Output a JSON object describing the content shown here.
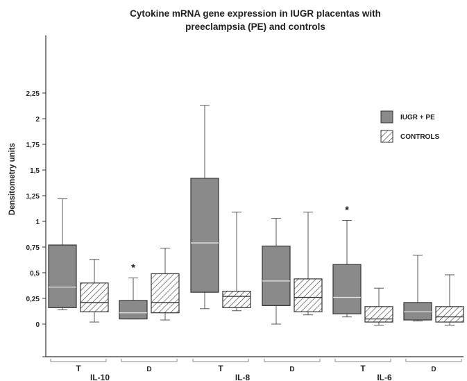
{
  "chart_data": {
    "type": "box",
    "title_line1": "Cytokine mRNA gene expression in IUGR placentas with",
    "title_line2": "preeclampsia (PE) and controls",
    "ylabel": "Densitometry units",
    "ylim": [
      -0.2,
      2.25
    ],
    "yticks": [
      "0",
      "0,25",
      "0,5",
      "0,75",
      "1",
      "1,25",
      "1,5",
      "1,75",
      "2",
      "2,25"
    ],
    "ytick_values": [
      0,
      0.25,
      0.5,
      0.75,
      1,
      1.25,
      1.5,
      1.75,
      2,
      2.25
    ],
    "legend_position": "right",
    "series": [
      {
        "name": "IUGR + PE",
        "style": "solid-gray",
        "color": "#8a8a8a"
      },
      {
        "name": "CONTROLS",
        "style": "hatched",
        "color": "#ffffff"
      }
    ],
    "groups": [
      {
        "name": "IL-10",
        "subgroups": [
          {
            "label": "T",
            "boxes": [
              {
                "series": 0,
                "min": 0.14,
                "q1": 0.16,
                "median": 0.36,
                "q3": 0.77,
                "max": 1.22,
                "star": false
              },
              {
                "series": 1,
                "min": 0.02,
                "q1": 0.12,
                "median": 0.21,
                "q3": 0.4,
                "max": 0.63,
                "star": false
              }
            ]
          },
          {
            "label": "D",
            "boxes": [
              {
                "series": 0,
                "min": 0.05,
                "q1": 0.05,
                "median": 0.11,
                "q3": 0.23,
                "max": 0.45,
                "star": true
              },
              {
                "series": 1,
                "min": 0.04,
                "q1": 0.11,
                "median": 0.21,
                "q3": 0.49,
                "max": 0.74,
                "star": false
              }
            ]
          }
        ]
      },
      {
        "name": "IL-8",
        "subgroups": [
          {
            "label": "T",
            "boxes": [
              {
                "series": 0,
                "min": 0.15,
                "q1": 0.31,
                "median": 0.79,
                "q3": 1.42,
                "max": 2.13,
                "star": false
              },
              {
                "series": 1,
                "min": 0.13,
                "q1": 0.16,
                "median": 0.27,
                "q3": 0.32,
                "max": 1.09,
                "star": false
              }
            ]
          },
          {
            "label": "D",
            "boxes": [
              {
                "series": 0,
                "min": 0.0,
                "q1": 0.18,
                "median": 0.42,
                "q3": 0.76,
                "max": 1.03,
                "star": false
              },
              {
                "series": 1,
                "min": 0.09,
                "q1": 0.12,
                "median": 0.26,
                "q3": 0.44,
                "max": 1.09,
                "star": false
              }
            ]
          }
        ]
      },
      {
        "name": "IL-6",
        "subgroups": [
          {
            "label": "T",
            "boxes": [
              {
                "series": 0,
                "min": 0.07,
                "q1": 0.1,
                "median": 0.26,
                "q3": 0.58,
                "max": 1.01,
                "star": true
              },
              {
                "series": 1,
                "min": -0.01,
                "q1": 0.02,
                "median": 0.05,
                "q3": 0.17,
                "max": 0.35,
                "star": false
              }
            ]
          },
          {
            "label": "D",
            "boxes": [
              {
                "series": 0,
                "min": 0.03,
                "q1": 0.04,
                "median": 0.12,
                "q3": 0.21,
                "max": 0.67,
                "star": false
              },
              {
                "series": 1,
                "min": -0.01,
                "q1": 0.02,
                "median": 0.07,
                "q3": 0.17,
                "max": 0.48,
                "star": false
              }
            ]
          }
        ]
      }
    ],
    "annotation_symbol": "*"
  }
}
